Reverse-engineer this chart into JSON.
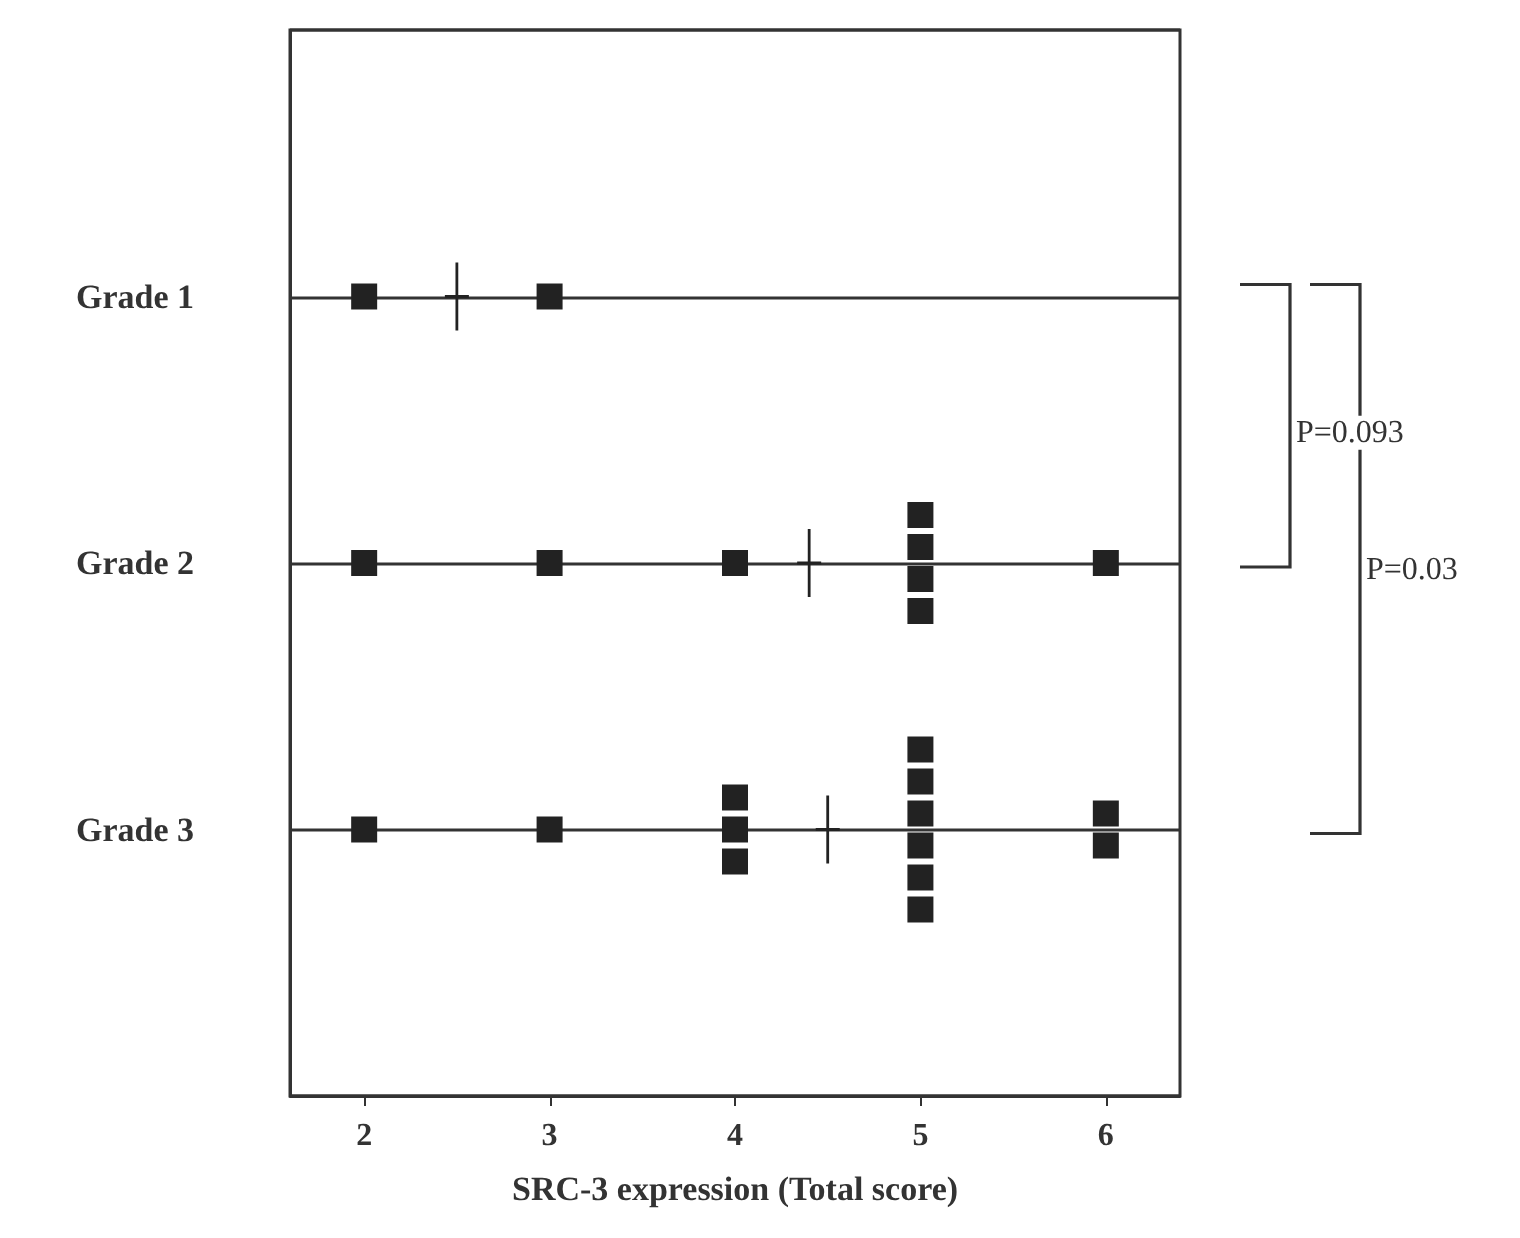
{
  "chart_data": {
    "type": "scatter",
    "orientation": "horizontal",
    "xlabel": "SRC-3 expression (Total score)",
    "categories": [
      null,
      "Grade 1",
      "Grade 2",
      "Grade 3",
      null
    ],
    "xlim": [
      1.6,
      6.4
    ],
    "xticks": [
      2,
      3,
      4,
      5,
      6
    ],
    "grid": "y",
    "marker": "square",
    "series": [
      {
        "color": "#222222",
        "x": [
          "Grade 1",
          "Grade 1",
          "Grade 2",
          "Grade 2",
          "Grade 2",
          "Grade 2",
          "Grade 2",
          "Grade 2",
          "Grade 2",
          "Grade 2",
          "Grade 3",
          "Grade 3",
          "Grade 3",
          "Grade 3",
          "Grade 3",
          "Grade 3",
          "Grade 3",
          "Grade 3",
          "Grade 3",
          "Grade 3",
          "Grade 3",
          "Grade 3",
          "Grade 3"
        ],
        "values": [
          2,
          3,
          2,
          3,
          4,
          5,
          5,
          5,
          5,
          6,
          2,
          3,
          4,
          4,
          4,
          5,
          5,
          5,
          5,
          5,
          5,
          6,
          6
        ]
      },
      {
        "color": "#222222",
        "marker": "cross",
        "x": [
          "Grade 1",
          "Grade 2",
          "Grade 3"
        ],
        "values": [
          2.5,
          4.4,
          4.5
        ]
      }
    ],
    "annotations": [
      "P=0.093",
      "P=0.03"
    ]
  }
}
